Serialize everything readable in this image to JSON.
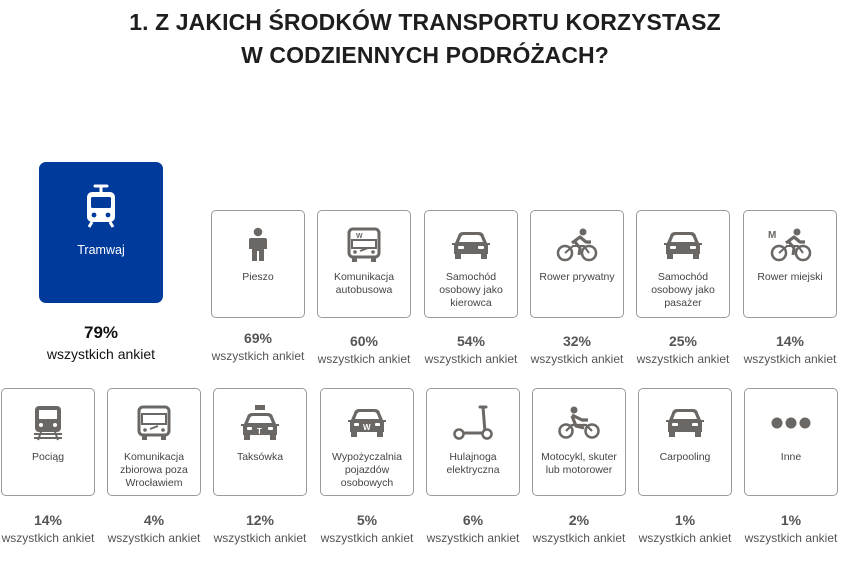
{
  "title": {
    "line1": "1. Z JAKICH ŚRODKÓW TRANSPORTU KORZYSTASZ",
    "line2": "W CODZIENNYCH PODRÓŻACH?"
  },
  "colors": {
    "accent": "#003a9b",
    "icon_gray": "#6b6764",
    "text_gray": "#555555",
    "card_border": "#9a9a9a"
  },
  "suffix": "wszystkich ankiet",
  "featured": {
    "label": "Tramwaj",
    "value": "79%",
    "suffix": "wszystkich ankiet",
    "icon": "tram-icon"
  },
  "row1": [
    {
      "label": "Pieszo",
      "value": "69%",
      "suffix": "wszystkich ankiet",
      "icon": "pedestrian-icon"
    },
    {
      "label": "Komunikacja autobusowa",
      "value": "60%",
      "suffix": "wszystkich ankiet",
      "icon": "bus-icon"
    },
    {
      "label": "Samochód osobowy jako kierowca",
      "value": "54%",
      "suffix": "wszystkich ankiet",
      "icon": "car-icon"
    },
    {
      "label": "Rower prywatny",
      "value": "32%",
      "suffix": "wszystkich ankiet",
      "icon": "bicycle-icon"
    },
    {
      "label": "Samochód osobowy jako pasażer",
      "value": "25%",
      "suffix": "wszystkich ankiet",
      "icon": "car-icon"
    },
    {
      "label": "Rower miejski",
      "value": "14%",
      "suffix": "wszystkich ankiet",
      "icon": "city-bike-icon"
    }
  ],
  "row2": [
    {
      "label": "Pociąg",
      "value": "14%",
      "suffix": "wszystkich ankiet",
      "icon": "train-icon"
    },
    {
      "label": "Komunikacja zbiorowa poza Wrocławiem",
      "value": "4%",
      "suffix": "wszystkich ankiet",
      "icon": "bus-icon"
    },
    {
      "label": "Taksówka",
      "value": "12%",
      "suffix": "wszystkich ankiet",
      "icon": "taxi-icon"
    },
    {
      "label": "Wypożyczalnia pojazdów osobowych",
      "value": "5%",
      "suffix": "wszystkich ankiet",
      "icon": "rental-car-icon"
    },
    {
      "label": "Hulajnoga elektryczna",
      "value": "6%",
      "suffix": "wszystkich ankiet",
      "icon": "scooter-icon"
    },
    {
      "label": "Motocykl, skuter lub motorower",
      "value": "2%",
      "suffix": "wszystkich ankiet",
      "icon": "motorcycle-icon"
    },
    {
      "label": "Carpooling",
      "value": "1%",
      "suffix": "wszystkich ankiet",
      "icon": "carpool-icon"
    },
    {
      "label": "Inne",
      "value": "1%",
      "suffix": "wszystkich ankiet",
      "icon": "more-icon"
    }
  ],
  "chart_data": {
    "type": "table",
    "title": "1. Z JAKICH ŚRODKÓW TRANSPORTU KORZYSTASZ W CODZIENNYCH PODRÓŻACH?",
    "categories": [
      "Tramwaj",
      "Pieszo",
      "Komunikacja autobusowa",
      "Samochód osobowy jako kierowca",
      "Rower prywatny",
      "Samochód osobowy jako pasażer",
      "Rower miejski",
      "Pociąg",
      "Komunikacja zbiorowa poza Wrocławiem",
      "Taksówka",
      "Wypożyczalnia pojazdów osobowych",
      "Hulajnoga elektryczna",
      "Motocykl, skuter lub motorower",
      "Carpooling",
      "Inne"
    ],
    "values": [
      79,
      69,
      60,
      54,
      32,
      25,
      14,
      14,
      4,
      12,
      5,
      6,
      2,
      1,
      1
    ],
    "unit": "%"
  }
}
